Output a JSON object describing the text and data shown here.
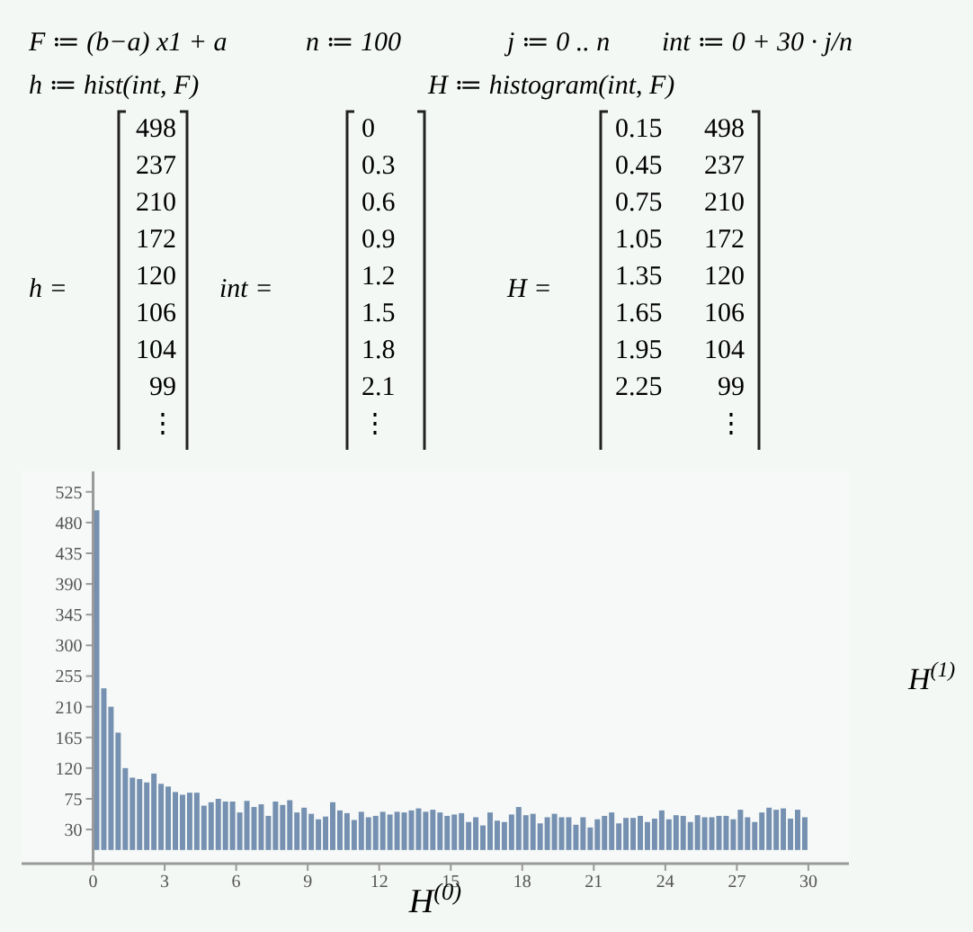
{
  "chart_data": {
    "type": "histogram",
    "bins": [
      0,
      0.3,
      0.6,
      0.9,
      1.2,
      1.5,
      1.8,
      2.1,
      2.4,
      2.7,
      3,
      3.3,
      3.6,
      3.9,
      4.2,
      4.5,
      4.8,
      5.1,
      5.4,
      5.7,
      6,
      6.3,
      6.6,
      6.9,
      7.2,
      7.5,
      7.8,
      8.1,
      8.4,
      8.7,
      9,
      9.3,
      9.6,
      9.9,
      10.2,
      10.5,
      10.8,
      11.1,
      11.4,
      11.7,
      12,
      12.3,
      12.6,
      12.9,
      13.2,
      13.5,
      13.8,
      14.1,
      14.4,
      14.7,
      15,
      15.3,
      15.6,
      15.9,
      16.2,
      16.5,
      16.8,
      17.1,
      17.4,
      17.7,
      18,
      18.3,
      18.6,
      18.9,
      19.2,
      19.5,
      19.8,
      20.1,
      20.4,
      20.7,
      21,
      21.3,
      21.6,
      21.9,
      22.2,
      22.5,
      22.8,
      23.1,
      23.4,
      23.7,
      24,
      24.3,
      24.6,
      24.9,
      25.2,
      25.5,
      25.8,
      26.1,
      26.4,
      26.7,
      27,
      27.3,
      27.6,
      27.9,
      28.2,
      28.5,
      28.8,
      29.1,
      29.4,
      29.7,
      30
    ],
    "values": [
      498,
      237,
      210,
      172,
      120,
      106,
      104,
      99,
      112,
      97,
      93,
      85,
      81,
      84,
      84,
      65,
      70,
      75,
      71,
      71,
      55,
      72,
      63,
      67,
      50,
      71,
      66,
      73,
      55,
      62,
      53,
      45,
      49,
      70,
      58,
      54,
      44,
      56,
      48,
      50,
      56,
      52,
      56,
      55,
      58,
      61,
      56,
      59,
      55,
      50,
      52,
      54,
      41,
      48,
      36,
      55,
      43,
      41,
      52,
      63,
      51,
      53,
      39,
      48,
      53,
      48,
      48,
      37,
      48,
      33,
      45,
      50,
      55,
      39,
      47,
      47,
      50,
      41,
      46,
      58,
      45,
      51,
      50,
      41,
      51,
      48,
      48,
      50,
      50,
      45,
      59,
      48,
      41,
      55,
      62,
      59,
      61,
      46,
      59,
      48
    ],
    "color": "#7590b0",
    "xlabel": "H$^{(0)}$",
    "ylabel": "H$^{(1)}$",
    "xlim": [
      -3,
      31.7
    ],
    "ylim": [
      -20,
      555
    ],
    "xticks": [
      0,
      3,
      6,
      9,
      12,
      15,
      18,
      21,
      24,
      27,
      30
    ],
    "yticks": [
      30,
      75,
      120,
      165,
      210,
      255,
      300,
      345,
      390,
      435,
      480,
      525
    ],
    "grid": false,
    "annotations": [
      "F ≔ (b−a) x1 + a",
      "n ≔ 100",
      "j ≔ 0 .. n",
      "int ≔ 0 + 30 · j/n",
      "h ≔ hist(int, F)",
      "H ≔ histogram(int, F)",
      "h =",
      "int =",
      "H =",
      "498\n237\n210\n172\n120\n106\n104\n99\n⋮",
      "0\n0.3\n0.6\n0.9\n1.2\n1.5\n1.8\n2.1\n⋮",
      "0.15\n0.45\n0.75\n1.05\n1.35\n1.65\n1.95\n2.25\n",
      "498\n237\n210\n172\n120\n106\n104\n99\n⋮"
    ]
  }
}
